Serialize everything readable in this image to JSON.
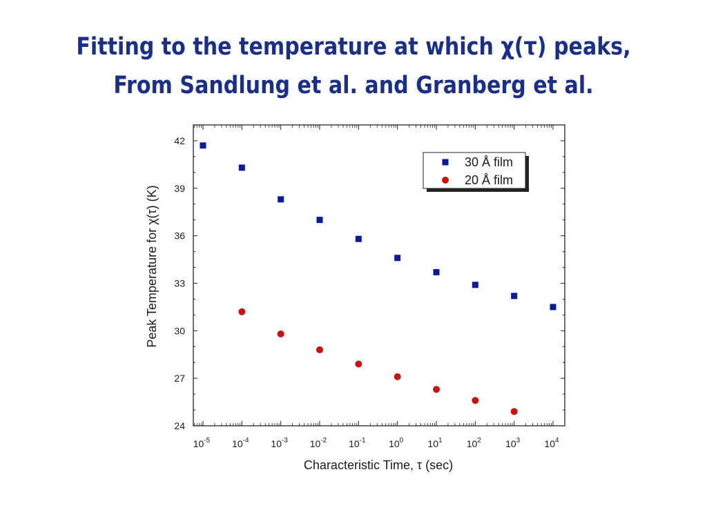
{
  "slide": {
    "title_line1": "Fitting to the temperature at which χ(τ) peaks,",
    "title_line2": "From Sandlung et al. and Granberg et al."
  },
  "chart_data": {
    "type": "scatter",
    "xlabel": "Characteristic Time, τ (sec)",
    "ylabel": "Peak Temperature for χ(τ) (K)",
    "xscale": "log",
    "xlim": [
      1e-05,
      10000.0
    ],
    "ylim": [
      24,
      43
    ],
    "xticks": [
      {
        "base": "10",
        "exp": "-5"
      },
      {
        "base": "10",
        "exp": "-4"
      },
      {
        "base": "10",
        "exp": "-3"
      },
      {
        "base": "10",
        "exp": "-2"
      },
      {
        "base": "10",
        "exp": "-1"
      },
      {
        "base": "10",
        "exp": "0"
      },
      {
        "base": "10",
        "exp": "1"
      },
      {
        "base": "10",
        "exp": "2"
      },
      {
        "base": "10",
        "exp": "3"
      },
      {
        "base": "10",
        "exp": "4"
      }
    ],
    "yticks": [
      24,
      27,
      30,
      33,
      36,
      39,
      42
    ],
    "grid": false,
    "legend_position": "top-right",
    "series": [
      {
        "name": "30 Å film",
        "marker": "square",
        "color": "#0a1a9c",
        "x": [
          1e-05,
          0.0001,
          0.001,
          0.01,
          0.1,
          1.0,
          10.0,
          100.0,
          1000.0,
          10000.0
        ],
        "y": [
          41.7,
          40.3,
          38.3,
          37.0,
          35.8,
          34.6,
          33.7,
          32.9,
          32.2,
          31.5
        ]
      },
      {
        "name": "20 Å film",
        "marker": "circle",
        "color": "#cc1111",
        "x": [
          0.0001,
          0.001,
          0.01,
          0.1,
          1.0,
          10.0,
          100.0,
          1000.0
        ],
        "y": [
          31.2,
          29.8,
          28.8,
          27.9,
          27.1,
          26.3,
          25.6,
          24.9
        ]
      }
    ]
  }
}
